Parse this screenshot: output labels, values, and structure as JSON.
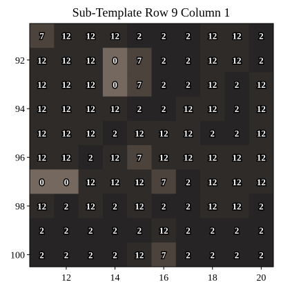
{
  "chart_data": {
    "type": "heatmap",
    "title": "Sub-Template Row 9 Column 1",
    "xlabel": "",
    "ylabel": "",
    "x": [
      11,
      12,
      13,
      14,
      15,
      16,
      17,
      18,
      19,
      20
    ],
    "y": [
      91,
      92,
      93,
      94,
      95,
      96,
      97,
      98,
      99,
      100
    ],
    "xticks": [
      12,
      14,
      16,
      18,
      20
    ],
    "yticks": [
      92,
      94,
      96,
      98,
      100
    ],
    "values": [
      [
        7,
        12,
        12,
        12,
        2,
        2,
        2,
        12,
        12,
        2
      ],
      [
        12,
        12,
        12,
        0,
        7,
        2,
        2,
        12,
        12,
        2
      ],
      [
        12,
        12,
        12,
        0,
        7,
        2,
        2,
        12,
        2,
        12
      ],
      [
        12,
        12,
        12,
        12,
        2,
        2,
        12,
        12,
        2,
        12
      ],
      [
        12,
        12,
        12,
        2,
        12,
        12,
        12,
        2,
        2,
        12
      ],
      [
        12,
        12,
        2,
        12,
        7,
        12,
        12,
        12,
        12,
        12
      ],
      [
        0,
        0,
        12,
        12,
        12,
        7,
        2,
        12,
        12,
        12
      ],
      [
        12,
        2,
        12,
        2,
        12,
        2,
        2,
        12,
        12,
        2
      ],
      [
        2,
        2,
        2,
        2,
        2,
        12,
        2,
        2,
        2,
        2
      ],
      [
        2,
        2,
        2,
        2,
        12,
        7,
        2,
        2,
        2,
        2
      ]
    ],
    "colors": {
      "0": "#75695f",
      "7": "#4b433c",
      "12": "#2f2b28",
      "2": "#262424"
    },
    "grid": false
  }
}
